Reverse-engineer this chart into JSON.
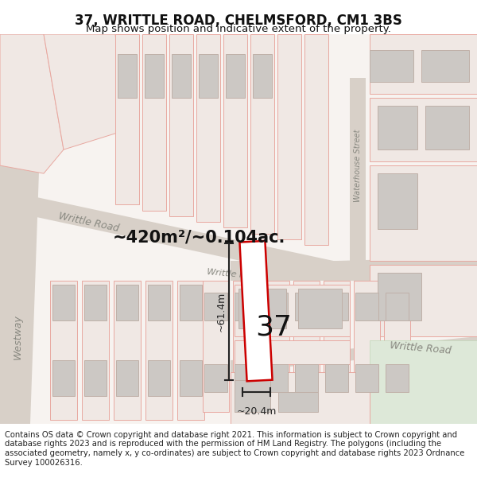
{
  "title": "37, WRITTLE ROAD, CHELMSFORD, CM1 3BS",
  "subtitle": "Map shows position and indicative extent of the property.",
  "footer": "Contains OS data © Crown copyright and database right 2021. This information is subject to Crown copyright and database rights 2023 and is reproduced with the permission of HM Land Registry. The polygons (including the associated geometry, namely x, y co-ordinates) are subject to Crown copyright and database rights 2023 Ordnance Survey 100026316.",
  "area_label": "~420m²/~0.104ac.",
  "width_label": "~20.4m",
  "height_label": "~61.4m",
  "number_label": "37",
  "map_bg": "#f7f3f0",
  "road_fill": "#d8d0c8",
  "road_fill2": "#d0c8c0",
  "plot_strip_fill": "#f0e8e4",
  "plot_strip_edge": "#e8a8a0",
  "building_fill": "#ccc8c4",
  "building_edge": "#c0b0a8",
  "plot_fill": "#ffffff",
  "plot_edge": "#cc0000",
  "plot_edge_width": 1.8,
  "dimension_color": "#222222",
  "road_label_color": "#888880",
  "area_label_color": "#111111",
  "title_fontsize": 12,
  "subtitle_fontsize": 9.5,
  "footer_fontsize": 7.2,
  "road_label_fontsize": 9,
  "area_label_fontsize": 15,
  "number_fontsize": 26,
  "dim_fontsize": 9,
  "green_fill": "#dde8d8"
}
